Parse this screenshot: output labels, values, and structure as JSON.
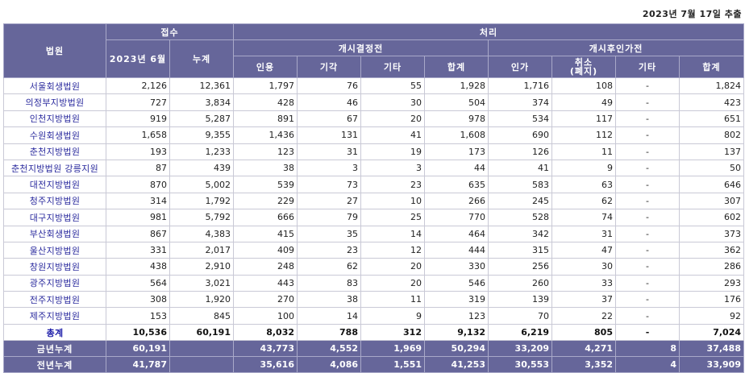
{
  "extract_date": "2023년 7월 17일 추출",
  "header": {
    "court": "법원",
    "receipt": "접수",
    "receipt_month": "2023년 6월",
    "receipt_cumulative": "누계",
    "processing": "처리",
    "before_commencement": "개시결정전",
    "after_commencement": "개시후인가전",
    "cols": {
      "accepted": "인용",
      "dismissed": "기각",
      "other1": "기타",
      "subtotal1": "합계",
      "approved": "인가",
      "cancel_line1": "취소",
      "cancel_line2": "(폐지)",
      "other2": "기타",
      "subtotal2": "합계"
    }
  },
  "rows": [
    {
      "court": "서울회생법원",
      "month": "2,126",
      "cum": "12,361",
      "accepted": "1,797",
      "dismissed": "76",
      "other1": "55",
      "sum1": "1,928",
      "approved": "1,716",
      "cancel": "108",
      "other2": "-",
      "sum2": "1,824"
    },
    {
      "court": "의정부지방법원",
      "month": "727",
      "cum": "3,834",
      "accepted": "428",
      "dismissed": "46",
      "other1": "30",
      "sum1": "504",
      "approved": "374",
      "cancel": "49",
      "other2": "-",
      "sum2": "423"
    },
    {
      "court": "인천지방법원",
      "month": "919",
      "cum": "5,287",
      "accepted": "891",
      "dismissed": "67",
      "other1": "20",
      "sum1": "978",
      "approved": "534",
      "cancel": "117",
      "other2": "-",
      "sum2": "651"
    },
    {
      "court": "수원회생법원",
      "month": "1,658",
      "cum": "9,355",
      "accepted": "1,436",
      "dismissed": "131",
      "other1": "41",
      "sum1": "1,608",
      "approved": "690",
      "cancel": "112",
      "other2": "-",
      "sum2": "802"
    },
    {
      "court": "춘천지방법원",
      "month": "193",
      "cum": "1,233",
      "accepted": "123",
      "dismissed": "31",
      "other1": "19",
      "sum1": "173",
      "approved": "126",
      "cancel": "11",
      "other2": "-",
      "sum2": "137"
    },
    {
      "court": "춘천지방법원 강릉지원",
      "month": "87",
      "cum": "439",
      "accepted": "38",
      "dismissed": "3",
      "other1": "3",
      "sum1": "44",
      "approved": "41",
      "cancel": "9",
      "other2": "-",
      "sum2": "50"
    },
    {
      "court": "대전지방법원",
      "month": "870",
      "cum": "5,002",
      "accepted": "539",
      "dismissed": "73",
      "other1": "23",
      "sum1": "635",
      "approved": "583",
      "cancel": "63",
      "other2": "-",
      "sum2": "646"
    },
    {
      "court": "청주지방법원",
      "month": "314",
      "cum": "1,792",
      "accepted": "229",
      "dismissed": "27",
      "other1": "10",
      "sum1": "266",
      "approved": "245",
      "cancel": "62",
      "other2": "-",
      "sum2": "307"
    },
    {
      "court": "대구지방법원",
      "month": "981",
      "cum": "5,792",
      "accepted": "666",
      "dismissed": "79",
      "other1": "25",
      "sum1": "770",
      "approved": "528",
      "cancel": "74",
      "other2": "-",
      "sum2": "602"
    },
    {
      "court": "부산회생법원",
      "month": "867",
      "cum": "4,383",
      "accepted": "415",
      "dismissed": "35",
      "other1": "14",
      "sum1": "464",
      "approved": "342",
      "cancel": "31",
      "other2": "-",
      "sum2": "373"
    },
    {
      "court": "울산지방법원",
      "month": "331",
      "cum": "2,017",
      "accepted": "409",
      "dismissed": "23",
      "other1": "12",
      "sum1": "444",
      "approved": "315",
      "cancel": "47",
      "other2": "-",
      "sum2": "362"
    },
    {
      "court": "창원지방법원",
      "month": "438",
      "cum": "2,910",
      "accepted": "248",
      "dismissed": "62",
      "other1": "20",
      "sum1": "330",
      "approved": "256",
      "cancel": "30",
      "other2": "-",
      "sum2": "286"
    },
    {
      "court": "광주지방법원",
      "month": "564",
      "cum": "3,021",
      "accepted": "443",
      "dismissed": "83",
      "other1": "20",
      "sum1": "546",
      "approved": "260",
      "cancel": "33",
      "other2": "-",
      "sum2": "293"
    },
    {
      "court": "전주지방법원",
      "month": "308",
      "cum": "1,920",
      "accepted": "270",
      "dismissed": "38",
      "other1": "11",
      "sum1": "319",
      "approved": "139",
      "cancel": "37",
      "other2": "-",
      "sum2": "176"
    },
    {
      "court": "제주지방법원",
      "month": "153",
      "cum": "845",
      "accepted": "100",
      "dismissed": "14",
      "other1": "9",
      "sum1": "123",
      "approved": "70",
      "cancel": "22",
      "other2": "-",
      "sum2": "92"
    }
  ],
  "total": {
    "court": "총계",
    "month": "10,536",
    "cum": "60,191",
    "accepted": "8,032",
    "dismissed": "788",
    "other1": "312",
    "sum1": "9,132",
    "approved": "6,219",
    "cancel": "805",
    "other2": "-",
    "sum2": "7,024"
  },
  "this_year": {
    "court": "금년누계",
    "month": "60,191",
    "cum": "",
    "accepted": "43,773",
    "dismissed": "4,552",
    "other1": "1,969",
    "sum1": "50,294",
    "approved": "33,209",
    "cancel": "4,271",
    "other2": "8",
    "sum2": "37,488"
  },
  "last_year": {
    "court": "전년누계",
    "month": "41,787",
    "cum": "",
    "accepted": "35,616",
    "dismissed": "4,086",
    "other1": "1,551",
    "sum1": "41,253",
    "approved": "30,553",
    "cancel": "3,352",
    "other2": "4",
    "sum2": "33,909"
  },
  "colors": {
    "header_bg": "#66669a",
    "header_text": "#ffffff",
    "court_link": "#2b2b9e",
    "grid": "#d6d6d6"
  }
}
